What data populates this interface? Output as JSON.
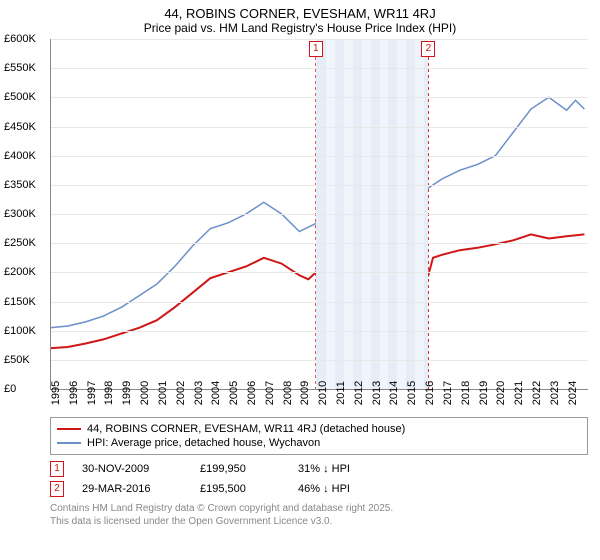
{
  "title": "44, ROBINS CORNER, EVESHAM, WR11 4RJ",
  "subtitle": "Price paid vs. HM Land Registry's House Price Index (HPI)",
  "chart": {
    "type": "line",
    "background_color": "#ffffff",
    "grid_color": "#e8e8e8",
    "axis_color": "#888888",
    "label_fontsize": 11,
    "x_start": 1995,
    "x_end": 2025.2,
    "x_ticks": [
      1995,
      1996,
      1997,
      1998,
      1999,
      2000,
      2001,
      2002,
      2003,
      2004,
      2005,
      2006,
      2007,
      2008,
      2009,
      2010,
      2011,
      2012,
      2013,
      2014,
      2015,
      2016,
      2017,
      2018,
      2019,
      2020,
      2021,
      2022,
      2023,
      2024
    ],
    "y_min": 0,
    "y_max": 600000,
    "y_tick_step": 50000,
    "y_tick_prefix": "£",
    "y_tick_suffix": "K",
    "shaded_bands": [
      {
        "from": 2009.92,
        "to": 2010.5,
        "color": "#e6edf7"
      },
      {
        "from": 2010.5,
        "to": 2011.0,
        "color": "#f0f4fb"
      },
      {
        "from": 2011.0,
        "to": 2011.5,
        "color": "#e6edf7"
      },
      {
        "from": 2011.5,
        "to": 2012.0,
        "color": "#f0f4fb"
      },
      {
        "from": 2012.0,
        "to": 2012.5,
        "color": "#e6edf7"
      },
      {
        "from": 2012.5,
        "to": 2013.0,
        "color": "#f0f4fb"
      },
      {
        "from": 2013.0,
        "to": 2013.5,
        "color": "#e6edf7"
      },
      {
        "from": 2013.5,
        "to": 2014.0,
        "color": "#f0f4fb"
      },
      {
        "from": 2014.0,
        "to": 2014.5,
        "color": "#e6edf7"
      },
      {
        "from": 2014.5,
        "to": 2015.0,
        "color": "#f0f4fb"
      },
      {
        "from": 2015.0,
        "to": 2015.5,
        "color": "#e6edf7"
      },
      {
        "from": 2015.5,
        "to": 2016.0,
        "color": "#f0f4fb"
      },
      {
        "from": 2016.0,
        "to": 2016.24,
        "color": "#e6edf7"
      }
    ],
    "markers": [
      {
        "label": "1",
        "x": 2009.92,
        "y_top": true,
        "color": "#d01616"
      },
      {
        "label": "2",
        "x": 2016.24,
        "y_top": true,
        "color": "#d01616"
      }
    ],
    "series": [
      {
        "name": "price_paid",
        "color": "#d01616",
        "line_width": 2,
        "points": [
          [
            1995,
            70000
          ],
          [
            1996,
            72000
          ],
          [
            1997,
            78000
          ],
          [
            1998,
            85000
          ],
          [
            1999,
            95000
          ],
          [
            2000,
            105000
          ],
          [
            2001,
            118000
          ],
          [
            2002,
            140000
          ],
          [
            2003,
            165000
          ],
          [
            2004,
            190000
          ],
          [
            2005,
            200000
          ],
          [
            2006,
            210000
          ],
          [
            2007,
            225000
          ],
          [
            2008,
            215000
          ],
          [
            2009,
            195000
          ],
          [
            2009.5,
            188000
          ],
          [
            2009.92,
            199950
          ],
          [
            2010.3,
            205000
          ],
          [
            2011,
            200000
          ],
          [
            2012,
            198000
          ],
          [
            2013,
            200000
          ],
          [
            2014,
            208000
          ],
          [
            2015,
            220000
          ],
          [
            2015.8,
            235000
          ],
          [
            2016.1,
            200000
          ],
          [
            2016.24,
            195500
          ],
          [
            2016.5,
            225000
          ],
          [
            2017,
            230000
          ],
          [
            2018,
            238000
          ],
          [
            2019,
            242000
          ],
          [
            2020,
            248000
          ],
          [
            2021,
            255000
          ],
          [
            2022,
            265000
          ],
          [
            2023,
            258000
          ],
          [
            2024,
            262000
          ],
          [
            2025,
            265000
          ]
        ]
      },
      {
        "name": "hpi",
        "color": "#6b8fc9",
        "line_width": 1.5,
        "points": [
          [
            1995,
            105000
          ],
          [
            1996,
            108000
          ],
          [
            1997,
            115000
          ],
          [
            1998,
            125000
          ],
          [
            1999,
            140000
          ],
          [
            2000,
            160000
          ],
          [
            2001,
            180000
          ],
          [
            2002,
            210000
          ],
          [
            2003,
            245000
          ],
          [
            2004,
            275000
          ],
          [
            2005,
            285000
          ],
          [
            2006,
            300000
          ],
          [
            2007,
            320000
          ],
          [
            2008,
            300000
          ],
          [
            2009,
            270000
          ],
          [
            2010,
            285000
          ],
          [
            2011,
            280000
          ],
          [
            2012,
            282000
          ],
          [
            2013,
            290000
          ],
          [
            2014,
            305000
          ],
          [
            2015,
            320000
          ],
          [
            2016,
            340000
          ],
          [
            2017,
            360000
          ],
          [
            2018,
            375000
          ],
          [
            2019,
            385000
          ],
          [
            2020,
            400000
          ],
          [
            2021,
            440000
          ],
          [
            2022,
            480000
          ],
          [
            2023,
            500000
          ],
          [
            2024,
            478000
          ],
          [
            2024.5,
            495000
          ],
          [
            2025,
            480000
          ]
        ]
      }
    ]
  },
  "legend": {
    "items": [
      {
        "color": "#d01616",
        "width": 2,
        "label": "44, ROBINS CORNER, EVESHAM, WR11 4RJ (detached house)"
      },
      {
        "color": "#6b8fc9",
        "width": 1.5,
        "label": "HPI: Average price, detached house, Wychavon"
      }
    ]
  },
  "transactions": [
    {
      "marker": "1",
      "marker_color": "#d01616",
      "date": "30-NOV-2009",
      "price": "£199,950",
      "delta": "31% ↓ HPI"
    },
    {
      "marker": "2",
      "marker_color": "#d01616",
      "date": "29-MAR-2016",
      "price": "£195,500",
      "delta": "46% ↓ HPI"
    }
  ],
  "footnote_line1": "Contains HM Land Registry data © Crown copyright and database right 2025.",
  "footnote_line2": "This data is licensed under the Open Government Licence v3.0."
}
